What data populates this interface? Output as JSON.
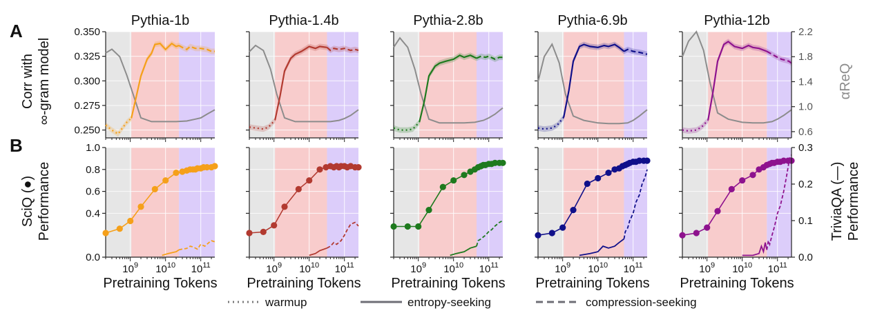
{
  "panel_letters": {
    "top": "A",
    "bottom": "B"
  },
  "axis_titles": {
    "top_left": [
      "Corr with",
      "∞-gram model"
    ],
    "top_right": "αReQ",
    "bottom_left": [
      "SciQ (●)",
      "Performance"
    ],
    "bottom_right": [
      "TriviaQA (—)",
      "Performance"
    ],
    "x": "Pretraining Tokens"
  },
  "legend": {
    "items": [
      {
        "label": "warmup",
        "style": "dotted"
      },
      {
        "label": "entropy-seeking",
        "style": "solid"
      },
      {
        "label": "compression-seeking",
        "style": "dashed"
      }
    ]
  },
  "colors": {
    "warmup_bg": "#e6e6e6",
    "entropy_bg": "#f8cccc",
    "compression_bg": "#dccdfa",
    "areq_line": "#8c8c8c",
    "grid": "#c8c8c8"
  },
  "chart_data": [
    {
      "type": "line",
      "title": "Pythia-1b",
      "color": "#f5a01a",
      "x_scale": "log",
      "xlim": [
        200000000.0,
        250000000000.0
      ],
      "x_ticks": [
        "10^9",
        "10^10",
        "10^11"
      ],
      "phase_bounds": {
        "warmup_end": 1070000000.0,
        "entropy_end": 24000000000.0
      },
      "top": {
        "ylim_left": [
          0.242,
          0.35
        ],
        "y_ticks_left": [
          0.25,
          0.275,
          0.3,
          0.325,
          0.35
        ],
        "ylim_right": [
          0.5,
          2.2
        ],
        "y_ticks_right": [
          0.6,
          1.0,
          1.4,
          1.8,
          2.2
        ],
        "corr_x": [
          200000000.0,
          300000000.0,
          450000000.0,
          600000000.0,
          800000000.0,
          1070000000.0,
          1500000000.0,
          2000000000.0,
          3000000000.0,
          4000000000.0,
          5000000000.0,
          7000000000.0,
          10000000000.0,
          15000000000.0,
          20000000000.0,
          24000000000.0,
          30000000000.0,
          40000000000.0,
          50000000000.0,
          70000000000.0,
          100000000000.0,
          150000000000.0,
          200000000000.0,
          250000000000.0
        ],
        "corr_y": [
          0.255,
          0.25,
          0.246,
          0.252,
          0.258,
          0.262,
          0.285,
          0.305,
          0.322,
          0.328,
          0.337,
          0.338,
          0.332,
          0.338,
          0.335,
          0.336,
          0.334,
          0.332,
          0.335,
          0.333,
          0.333,
          0.332,
          0.33,
          0.33
        ],
        "areq_x": [
          200000000.0,
          300000000.0,
          500000000.0,
          800000000.0,
          1200000000.0,
          2000000000.0,
          4000000000.0,
          10000000000.0,
          20000000000.0,
          40000000000.0,
          70000000000.0,
          100000000000.0,
          150000000000.0,
          250000000000.0
        ],
        "areq_y": [
          1.86,
          1.92,
          1.8,
          1.5,
          1.2,
          0.82,
          0.76,
          0.76,
          0.76,
          0.77,
          0.8,
          0.82,
          0.88,
          0.95
        ]
      },
      "bottom": {
        "ylim_left": [
          0.0,
          1.0
        ],
        "y_ticks_left": [
          0.0,
          0.4,
          0.6,
          0.8,
          1.0
        ],
        "y_tick_labels_left": [
          "0.0",
          "0.4",
          "0.6",
          "0.8",
          "1.0"
        ],
        "ylim_right": [
          0.0,
          0.3
        ],
        "y_ticks_right": [
          0.0,
          0.1,
          0.2,
          0.3
        ],
        "sciq_x": [
          200000000.0,
          500000000.0,
          1000000000.0,
          2000000000.0,
          5000000000.0,
          10000000000.0,
          20000000000.0,
          30000000000.0,
          40000000000.0,
          50000000000.0,
          60000000000.0,
          70000000000.0,
          80000000000.0,
          100000000000.0,
          120000000000.0,
          150000000000.0,
          200000000000.0,
          250000000000.0
        ],
        "sciq": [
          0.22,
          0.26,
          0.33,
          0.46,
          0.62,
          0.7,
          0.77,
          0.78,
          0.79,
          0.8,
          0.8,
          0.8,
          0.81,
          0.81,
          0.82,
          0.82,
          0.82,
          0.83
        ],
        "trivia_x": [
          8000000000.0,
          12000000000.0,
          20000000000.0,
          24000000000.0,
          30000000000.0,
          40000000000.0,
          50000000000.0,
          60000000000.0,
          80000000000.0,
          100000000000.0,
          130000000000.0,
          170000000000.0,
          200000000000.0,
          250000000000.0
        ],
        "trivia": [
          0.005,
          0.01,
          0.015,
          0.02,
          0.022,
          0.024,
          0.03,
          0.028,
          0.022,
          0.035,
          0.03,
          0.04,
          0.045,
          0.042
        ]
      }
    },
    {
      "type": "line",
      "title": "Pythia-1.4b",
      "color": "#b23a30",
      "x_scale": "log",
      "xlim": [
        200000000.0,
        250000000000.0
      ],
      "x_ticks": [
        "10^9",
        "10^10",
        "10^11"
      ],
      "phase_bounds": {
        "warmup_end": 1070000000.0,
        "entropy_end": 32000000000.0
      },
      "top": {
        "ylim_left": [
          0.242,
          0.35
        ],
        "ylim_right": [
          0.5,
          2.2
        ],
        "corr_x": [
          200000000.0,
          300000000.0,
          500000000.0,
          700000000.0,
          1070000000.0,
          1500000000.0,
          2000000000.0,
          3000000000.0,
          4000000000.0,
          6000000000.0,
          10000000000.0,
          15000000000.0,
          20000000000.0,
          32000000000.0,
          40000000000.0,
          50000000000.0,
          70000000000.0,
          100000000000.0,
          150000000000.0,
          200000000000.0,
          250000000000.0
        ],
        "corr_y": [
          0.253,
          0.252,
          0.251,
          0.253,
          0.26,
          0.285,
          0.31,
          0.323,
          0.327,
          0.33,
          0.335,
          0.333,
          0.335,
          0.334,
          0.331,
          0.333,
          0.332,
          0.333,
          0.331,
          0.332,
          0.331
        ],
        "areq_x": [
          200000000.0,
          300000000.0,
          500000000.0,
          800000000.0,
          1200000000.0,
          2000000000.0,
          4000000000.0,
          10000000000.0,
          20000000000.0,
          40000000000.0,
          70000000000.0,
          100000000000.0,
          150000000000.0,
          250000000000.0
        ],
        "areq_y": [
          1.88,
          1.98,
          1.9,
          1.6,
          1.2,
          0.82,
          0.76,
          0.76,
          0.76,
          0.76,
          0.78,
          0.81,
          0.86,
          0.95
        ]
      },
      "bottom": {
        "ylim_left": [
          0.0,
          1.0
        ],
        "ylim_right": [
          0.0,
          0.3
        ],
        "sciq_x": [
          200000000.0,
          500000000.0,
          1000000000.0,
          2000000000.0,
          5000000000.0,
          10000000000.0,
          20000000000.0,
          30000000000.0,
          40000000000.0,
          50000000000.0,
          60000000000.0,
          70000000000.0,
          80000000000.0,
          100000000000.0,
          120000000000.0,
          150000000000.0,
          200000000000.0,
          250000000000.0
        ],
        "sciq": [
          0.22,
          0.23,
          0.29,
          0.46,
          0.62,
          0.7,
          0.8,
          0.82,
          0.83,
          0.82,
          0.83,
          0.82,
          0.83,
          0.83,
          0.82,
          0.83,
          0.82,
          0.82
        ],
        "trivia_x": [
          10000000000.0,
          15000000000.0,
          20000000000.0,
          32000000000.0,
          40000000000.0,
          50000000000.0,
          60000000000.0,
          80000000000.0,
          100000000000.0,
          120000000000.0,
          150000000000.0,
          200000000000.0,
          250000000000.0
        ],
        "trivia": [
          0.005,
          0.01,
          0.018,
          0.025,
          0.03,
          0.04,
          0.035,
          0.045,
          0.06,
          0.075,
          0.09,
          0.095,
          0.085
        ]
      }
    },
    {
      "type": "line",
      "title": "Pythia-2.8b",
      "color": "#1e7a1e",
      "x_scale": "log",
      "xlim": [
        200000000.0,
        250000000000.0
      ],
      "x_ticks": [
        "10^9",
        "10^10",
        "10^11"
      ],
      "phase_bounds": {
        "warmup_end": 1070000000.0,
        "entropy_end": 45000000000.0
      },
      "top": {
        "ylim_left": [
          0.242,
          0.35
        ],
        "ylim_right": [
          0.5,
          2.2
        ],
        "corr_x": [
          200000000.0,
          300000000.0,
          500000000.0,
          700000000.0,
          1070000000.0,
          1500000000.0,
          2000000000.0,
          3000000000.0,
          4000000000.0,
          6000000000.0,
          10000000000.0,
          15000000000.0,
          20000000000.0,
          30000000000.0,
          45000000000.0,
          60000000000.0,
          80000000000.0,
          100000000000.0,
          150000000000.0,
          200000000000.0,
          250000000000.0
        ],
        "corr_y": [
          0.252,
          0.25,
          0.25,
          0.251,
          0.258,
          0.28,
          0.305,
          0.315,
          0.318,
          0.32,
          0.322,
          0.326,
          0.324,
          0.326,
          0.323,
          0.325,
          0.324,
          0.325,
          0.322,
          0.324,
          0.324
        ],
        "areq_x": [
          200000000.0,
          300000000.0,
          500000000.0,
          800000000.0,
          1200000000.0,
          2000000000.0,
          4000000000.0,
          10000000000.0,
          20000000000.0,
          40000000000.0,
          70000000000.0,
          100000000000.0,
          150000000000.0,
          250000000000.0
        ],
        "areq_y": [
          1.95,
          2.1,
          1.95,
          1.6,
          1.2,
          0.8,
          0.74,
          0.74,
          0.74,
          0.75,
          0.78,
          0.82,
          0.88,
          0.98
        ]
      },
      "bottom": {
        "ylim_left": [
          0.0,
          1.0
        ],
        "ylim_right": [
          0.0,
          0.3
        ],
        "sciq_x": [
          200000000.0,
          500000000.0,
          1000000000.0,
          2000000000.0,
          5000000000.0,
          10000000000.0,
          20000000000.0,
          30000000000.0,
          40000000000.0,
          50000000000.0,
          60000000000.0,
          70000000000.0,
          80000000000.0,
          100000000000.0,
          120000000000.0,
          150000000000.0,
          200000000000.0,
          250000000000.0
        ],
        "sciq": [
          0.28,
          0.28,
          0.28,
          0.43,
          0.64,
          0.7,
          0.75,
          0.78,
          0.8,
          0.82,
          0.83,
          0.84,
          0.84,
          0.85,
          0.85,
          0.86,
          0.86,
          0.86
        ],
        "trivia_x": [
          8000000000.0,
          12000000000.0,
          20000000000.0,
          30000000000.0,
          45000000000.0,
          50000000000.0,
          60000000000.0,
          80000000000.0,
          100000000000.0,
          120000000000.0,
          150000000000.0,
          200000000000.0,
          250000000000.0
        ],
        "trivia": [
          0.005,
          0.01,
          0.015,
          0.025,
          0.03,
          0.045,
          0.05,
          0.06,
          0.07,
          0.075,
          0.085,
          0.095,
          0.1
        ]
      }
    },
    {
      "type": "line",
      "title": "Pythia-6.9b",
      "color": "#10108a",
      "x_scale": "log",
      "xlim": [
        200000000.0,
        250000000000.0
      ],
      "x_ticks": [
        "10^9",
        "10^10",
        "10^11"
      ],
      "phase_bounds": {
        "warmup_end": 1070000000.0,
        "entropy_end": 55000000000.0
      },
      "top": {
        "ylim_left": [
          0.242,
          0.35
        ],
        "ylim_right": [
          0.5,
          2.2
        ],
        "corr_x": [
          200000000.0,
          300000000.0,
          500000000.0,
          700000000.0,
          1070000000.0,
          1500000000.0,
          2000000000.0,
          3000000000.0,
          4000000000.0,
          6000000000.0,
          10000000000.0,
          15000000000.0,
          20000000000.0,
          30000000000.0,
          40000000000.0,
          55000000000.0,
          70000000000.0,
          100000000000.0,
          150000000000.0,
          200000000000.0,
          250000000000.0
        ],
        "corr_y": [
          0.252,
          0.251,
          0.252,
          0.255,
          0.263,
          0.29,
          0.32,
          0.335,
          0.337,
          0.335,
          0.334,
          0.336,
          0.335,
          0.337,
          0.334,
          0.33,
          0.332,
          0.33,
          0.329,
          0.328,
          0.327
        ],
        "areq_x": [
          200000000.0,
          300000000.0,
          500000000.0,
          800000000.0,
          1200000000.0,
          2000000000.0,
          4000000000.0,
          10000000000.0,
          20000000000.0,
          40000000000.0,
          70000000000.0,
          100000000000.0,
          150000000000.0,
          250000000000.0
        ],
        "areq_y": [
          1.4,
          1.8,
          2.0,
          1.7,
          1.2,
          0.85,
          0.78,
          0.74,
          0.73,
          0.73,
          0.74,
          0.78,
          0.85,
          0.95
        ]
      },
      "bottom": {
        "ylim_left": [
          0.0,
          1.0
        ],
        "ylim_right": [
          0.0,
          0.3
        ],
        "sciq_x": [
          200000000.0,
          500000000.0,
          1000000000.0,
          2000000000.0,
          5000000000.0,
          10000000000.0,
          20000000000.0,
          30000000000.0,
          40000000000.0,
          50000000000.0,
          60000000000.0,
          70000000000.0,
          80000000000.0,
          100000000000.0,
          120000000000.0,
          150000000000.0,
          200000000000.0,
          250000000000.0
        ],
        "sciq": [
          0.2,
          0.22,
          0.27,
          0.43,
          0.67,
          0.72,
          0.77,
          0.8,
          0.81,
          0.83,
          0.84,
          0.85,
          0.86,
          0.87,
          0.87,
          0.88,
          0.88,
          0.88
        ],
        "trivia_x": [
          3000000000.0,
          6000000000.0,
          10000000000.0,
          14000000000.0,
          20000000000.0,
          30000000000.0,
          40000000000.0,
          55000000000.0,
          60000000000.0,
          70000000000.0,
          80000000000.0,
          100000000000.0,
          120000000000.0,
          150000000000.0,
          180000000000.0,
          220000000000.0,
          250000000000.0
        ],
        "trivia": [
          0.005,
          0.01,
          0.015,
          0.03,
          0.025,
          0.03,
          0.04,
          0.05,
          0.07,
          0.08,
          0.1,
          0.12,
          0.15,
          0.17,
          0.2,
          0.22,
          0.24
        ]
      }
    },
    {
      "type": "line",
      "title": "Pythia-12b",
      "color": "#8e128e",
      "x_scale": "log",
      "xlim": [
        200000000.0,
        250000000000.0
      ],
      "x_ticks": [
        "10^9",
        "10^10",
        "10^11"
      ],
      "phase_bounds": {
        "warmup_end": 1070000000.0,
        "entropy_end": 50000000000.0
      },
      "top": {
        "ylim_left": [
          0.242,
          0.35
        ],
        "ylim_right": [
          0.5,
          2.2
        ],
        "corr_x": [
          200000000.0,
          300000000.0,
          500000000.0,
          700000000.0,
          1070000000.0,
          1500000000.0,
          2000000000.0,
          3000000000.0,
          4000000000.0,
          6000000000.0,
          10000000000.0,
          15000000000.0,
          20000000000.0,
          30000000000.0,
          50000000000.0,
          70000000000.0,
          100000000000.0,
          130000000000.0,
          170000000000.0,
          210000000000.0,
          250000000000.0
        ],
        "corr_y": [
          0.25,
          0.249,
          0.25,
          0.253,
          0.26,
          0.29,
          0.32,
          0.337,
          0.34,
          0.335,
          0.333,
          0.336,
          0.334,
          0.333,
          0.33,
          0.327,
          0.324,
          0.322,
          0.321,
          0.32,
          0.318
        ],
        "areq_x": [
          200000000.0,
          300000000.0,
          500000000.0,
          800000000.0,
          1200000000.0,
          2000000000.0,
          4000000000.0,
          10000000000.0,
          20000000000.0,
          40000000000.0,
          70000000000.0,
          100000000000.0,
          150000000000.0,
          250000000000.0
        ],
        "areq_y": [
          1.8,
          2.05,
          2.2,
          1.9,
          1.4,
          0.9,
          0.8,
          0.75,
          0.74,
          0.74,
          0.76,
          0.8,
          0.86,
          0.95
        ]
      },
      "bottom": {
        "ylim_left": [
          0.0,
          1.0
        ],
        "ylim_right": [
          0.0,
          0.3
        ],
        "sciq_x": [
          200000000.0,
          500000000.0,
          1000000000.0,
          2000000000.0,
          5000000000.0,
          10000000000.0,
          20000000000.0,
          30000000000.0,
          40000000000.0,
          50000000000.0,
          60000000000.0,
          70000000000.0,
          80000000000.0,
          100000000000.0,
          120000000000.0,
          150000000000.0,
          200000000000.0,
          250000000000.0
        ],
        "sciq": [
          0.2,
          0.22,
          0.27,
          0.42,
          0.62,
          0.7,
          0.75,
          0.8,
          0.82,
          0.84,
          0.85,
          0.86,
          0.86,
          0.87,
          0.87,
          0.88,
          0.88,
          0.88
        ],
        "trivia_x": [
          10000000000.0,
          20000000000.0,
          30000000000.0,
          35000000000.0,
          40000000000.0,
          45000000000.0,
          50000000000.0,
          55000000000.0,
          60000000000.0,
          70000000000.0,
          80000000000.0,
          90000000000.0,
          100000000000.0,
          120000000000.0,
          150000000000.0,
          180000000000.0,
          220000000000.0,
          250000000000.0
        ],
        "trivia": [
          0.005,
          0.005,
          0.01,
          0.03,
          0.015,
          0.04,
          0.02,
          0.045,
          0.035,
          0.06,
          0.08,
          0.1,
          0.12,
          0.14,
          0.18,
          0.22,
          0.27,
          0.28
        ]
      }
    }
  ]
}
